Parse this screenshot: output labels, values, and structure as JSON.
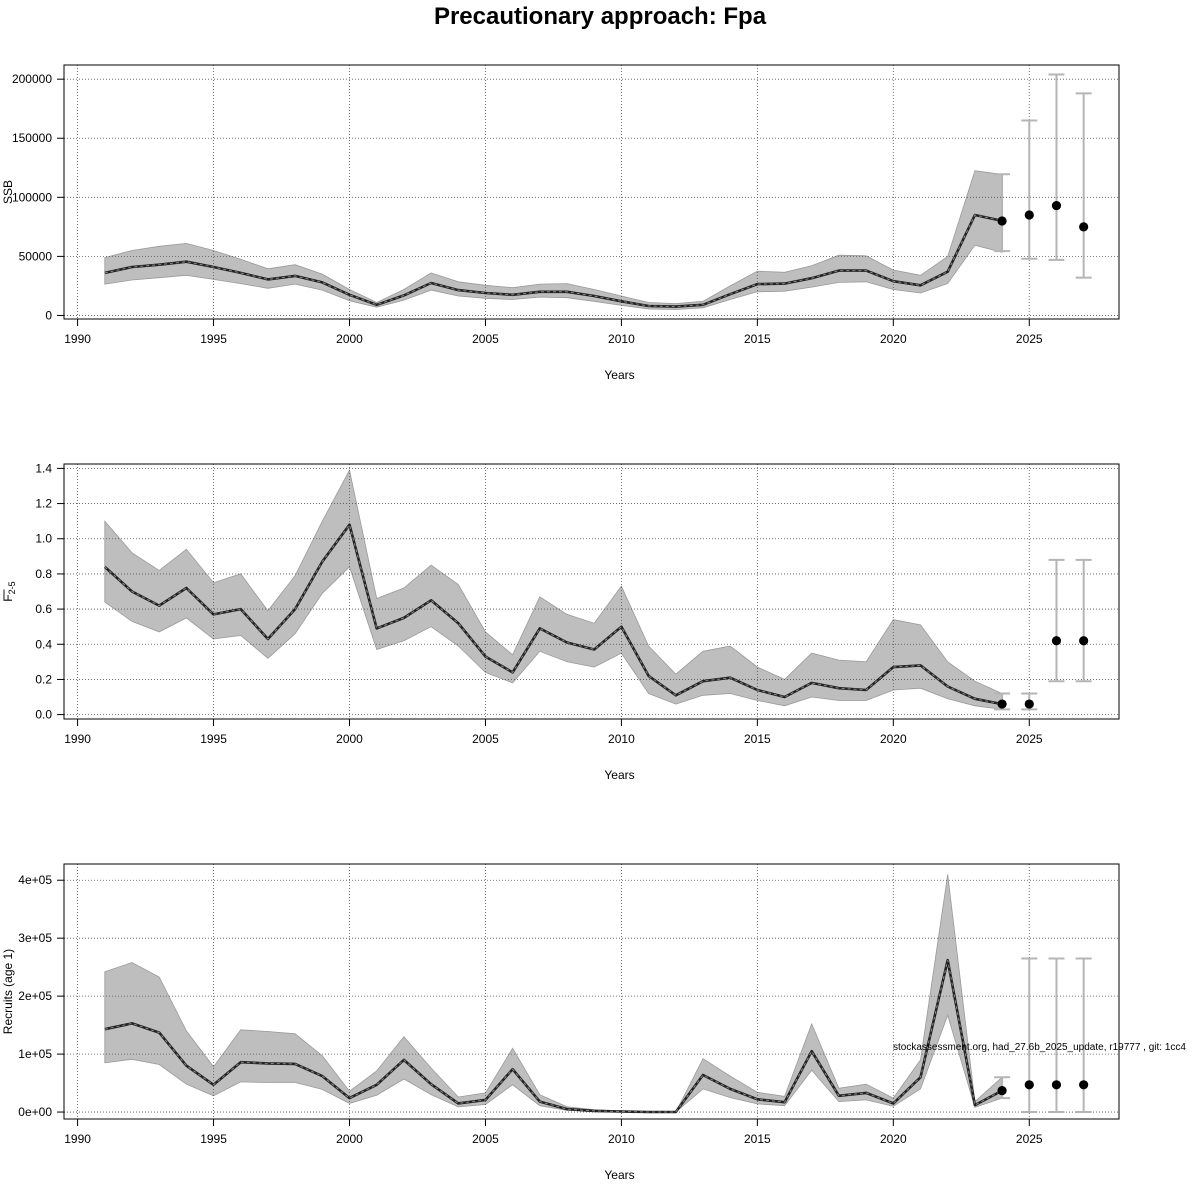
{
  "page": {
    "title": "Precautionary approach: Fpa",
    "watermark": "stockassessment.org, had_27.6b_2025_update, r19777 , git: 1cc4"
  },
  "colors": {
    "band": "#bebebe",
    "band_edge": "#9a9a9a",
    "line": "#222222",
    "dashed": "#888888",
    "errorbar": "#b5b5b5",
    "point": "#000000",
    "grid": "#555555"
  },
  "chart_data": [
    {
      "type": "line",
      "name": "ssb",
      "ylabel": "SSB",
      "xlabel": "Years",
      "xlim": [
        1989.5,
        2028.3
      ],
      "ylim": [
        -3000,
        212000
      ],
      "x_ticks": [
        1990,
        1995,
        2000,
        2005,
        2010,
        2015,
        2020,
        2025
      ],
      "x_tick_labels": [
        "1990",
        "1995",
        "2000",
        "2005",
        "2010",
        "2015",
        "2020",
        "2025"
      ],
      "y_ticks": [
        0,
        50000,
        100000,
        150000,
        200000
      ],
      "y_tick_labels": [
        "0",
        "50000",
        "100000",
        "150000",
        "200000"
      ],
      "years": [
        1991,
        1992,
        1993,
        1994,
        1995,
        1996,
        1997,
        1998,
        1999,
        2000,
        2001,
        2002,
        2003,
        2004,
        2005,
        2006,
        2007,
        2008,
        2009,
        2010,
        2011,
        2012,
        2013,
        2014,
        2015,
        2016,
        2017,
        2018,
        2019,
        2020,
        2021,
        2022,
        2023,
        2024
      ],
      "values": [
        36000,
        41000,
        43000,
        45500,
        41000,
        36000,
        30500,
        33500,
        28000,
        17500,
        9000,
        17000,
        27500,
        21500,
        19000,
        17500,
        20000,
        20000,
        16500,
        12000,
        8000,
        7500,
        9000,
        18000,
        26500,
        27000,
        31500,
        38000,
        38000,
        29000,
        25500,
        37000,
        85000,
        80000
      ],
      "lower": [
        26500,
        30000,
        32000,
        34000,
        30500,
        27000,
        23000,
        26500,
        21500,
        12500,
        7000,
        13000,
        21500,
        16500,
        14500,
        13500,
        15500,
        15000,
        12000,
        8500,
        5500,
        5000,
        6500,
        13500,
        20000,
        20500,
        24000,
        28000,
        28500,
        22000,
        19000,
        27000,
        59500,
        53500
      ],
      "upper": [
        49000,
        55000,
        58500,
        61000,
        55000,
        47500,
        39500,
        43000,
        35000,
        22000,
        11000,
        22000,
        36000,
        28500,
        25500,
        23500,
        26500,
        27000,
        22000,
        16500,
        11000,
        10000,
        12000,
        25000,
        37500,
        36500,
        42000,
        51000,
        50500,
        38500,
        34000,
        50000,
        122500,
        119500
      ],
      "forecast": {
        "years": [
          2024,
          2025,
          2026,
          2027
        ],
        "values": [
          80000,
          85000,
          93000,
          75000
        ],
        "lower": [
          54500,
          48000,
          47000,
          32000
        ],
        "upper": [
          119500,
          165000,
          204000,
          188000
        ]
      }
    },
    {
      "type": "line",
      "name": "fbar",
      "ylabel": "F",
      "ylabel_sub": "2-5",
      "xlabel": "Years",
      "xlim": [
        1989.5,
        2028.3
      ],
      "ylim": [
        -0.025,
        1.425
      ],
      "x_ticks": [
        1990,
        1995,
        2000,
        2005,
        2010,
        2015,
        2020,
        2025
      ],
      "x_tick_labels": [
        "1990",
        "1995",
        "2000",
        "2005",
        "2010",
        "2015",
        "2020",
        "2025"
      ],
      "y_ticks": [
        0.0,
        0.2,
        0.4,
        0.6,
        0.8,
        1.0,
        1.2,
        1.4
      ],
      "y_tick_labels": [
        "0.0",
        "0.2",
        "0.4",
        "0.6",
        "0.8",
        "1.0",
        "1.2",
        "1.4"
      ],
      "years": [
        1991,
        1992,
        1993,
        1994,
        1995,
        1996,
        1997,
        1998,
        1999,
        2000,
        2001,
        2002,
        2003,
        2004,
        2005,
        2006,
        2007,
        2008,
        2009,
        2010,
        2011,
        2012,
        2013,
        2014,
        2015,
        2016,
        2017,
        2018,
        2019,
        2020,
        2021,
        2022,
        2023,
        2024
      ],
      "values": [
        0.84,
        0.7,
        0.62,
        0.72,
        0.57,
        0.6,
        0.43,
        0.6,
        0.87,
        1.08,
        0.49,
        0.55,
        0.65,
        0.52,
        0.33,
        0.24,
        0.49,
        0.41,
        0.37,
        0.5,
        0.22,
        0.11,
        0.19,
        0.21,
        0.14,
        0.1,
        0.18,
        0.15,
        0.14,
        0.27,
        0.28,
        0.16,
        0.09,
        0.06
      ],
      "lower": [
        0.64,
        0.53,
        0.47,
        0.55,
        0.43,
        0.45,
        0.32,
        0.46,
        0.69,
        0.84,
        0.37,
        0.42,
        0.5,
        0.39,
        0.24,
        0.18,
        0.36,
        0.3,
        0.27,
        0.35,
        0.12,
        0.06,
        0.11,
        0.12,
        0.08,
        0.05,
        0.1,
        0.08,
        0.08,
        0.14,
        0.15,
        0.09,
        0.05,
        0.03
      ],
      "upper": [
        1.1,
        0.92,
        0.82,
        0.94,
        0.75,
        0.8,
        0.59,
        0.79,
        1.1,
        1.39,
        0.66,
        0.72,
        0.85,
        0.74,
        0.47,
        0.34,
        0.67,
        0.57,
        0.52,
        0.73,
        0.39,
        0.23,
        0.36,
        0.39,
        0.27,
        0.2,
        0.35,
        0.31,
        0.3,
        0.54,
        0.51,
        0.3,
        0.19,
        0.12
      ],
      "forecast": {
        "years": [
          2024,
          2025,
          2026,
          2027
        ],
        "values": [
          0.06,
          0.06,
          0.42,
          0.42
        ],
        "lower": [
          0.03,
          0.03,
          0.19,
          0.19
        ],
        "upper": [
          0.12,
          0.12,
          0.88,
          0.88
        ]
      }
    },
    {
      "type": "line",
      "name": "recruits",
      "ylabel": "Recruits (age 1)",
      "xlabel": "Years",
      "xlim": [
        1989.5,
        2028.3
      ],
      "ylim": [
        -12000,
        428000
      ],
      "x_ticks": [
        1990,
        1995,
        2000,
        2005,
        2010,
        2015,
        2020,
        2025
      ],
      "x_tick_labels": [
        "1990",
        "1995",
        "2000",
        "2005",
        "2010",
        "2015",
        "2020",
        "2025"
      ],
      "y_ticks": [
        0,
        100000,
        200000,
        300000,
        400000
      ],
      "y_tick_labels": [
        "0e+00",
        "1e+05",
        "2e+05",
        "3e+05",
        "4e+05"
      ],
      "years": [
        1991,
        1992,
        1993,
        1994,
        1995,
        1996,
        1997,
        1998,
        1999,
        2000,
        2001,
        2002,
        2003,
        2004,
        2005,
        2006,
        2007,
        2008,
        2009,
        2010,
        2011,
        2012,
        2013,
        2014,
        2015,
        2016,
        2017,
        2018,
        2019,
        2020,
        2021,
        2022,
        2023,
        2024
      ],
      "values": [
        143000,
        153000,
        137000,
        80000,
        47000,
        86000,
        84000,
        83000,
        62000,
        24000,
        47000,
        90000,
        48000,
        15000,
        21000,
        74000,
        18000,
        5000,
        2000,
        1000,
        0,
        0,
        64000,
        40000,
        22000,
        17000,
        105000,
        28000,
        33000,
        15000,
        60000,
        262000,
        12000,
        37000
      ],
      "lower": [
        85000,
        91000,
        82000,
        48000,
        28000,
        52000,
        51000,
        51000,
        39000,
        15000,
        29000,
        57000,
        30000,
        9000,
        13000,
        47000,
        11000,
        3000,
        1000,
        500,
        0,
        0,
        40000,
        25000,
        14000,
        11000,
        72000,
        18000,
        21000,
        10000,
        40000,
        167000,
        8000,
        24000
      ],
      "upper": [
        242000,
        258000,
        233000,
        140000,
        78000,
        142000,
        139000,
        135000,
        97000,
        36000,
        71000,
        130000,
        76000,
        26000,
        33000,
        110000,
        30000,
        9000,
        4000,
        2000,
        0,
        0,
        92000,
        62000,
        34000,
        27000,
        152000,
        41000,
        48000,
        24000,
        90000,
        410000,
        18000,
        60000
      ],
      "forecast": {
        "years": [
          2024,
          2025,
          2026,
          2027
        ],
        "values": [
          37000,
          47000,
          47000,
          47000
        ],
        "lower": [
          24000,
          0,
          0,
          0
        ],
        "upper": [
          60000,
          265000,
          265000,
          265000
        ]
      }
    }
  ]
}
